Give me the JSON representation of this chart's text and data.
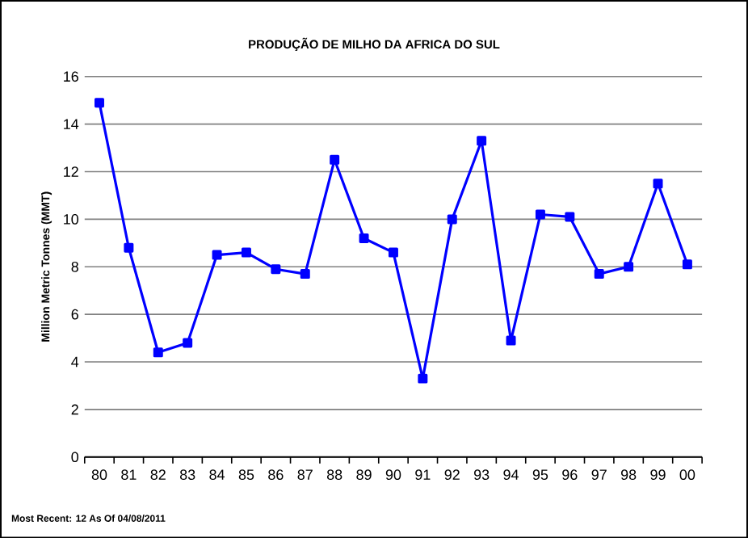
{
  "chart_data": {
    "type": "line",
    "title": "PRODUÇÃO  DE  MILHO  DA  AFRICA DO SUL",
    "ylabel": "Million Metric Tonnes (MMT)",
    "categories": [
      "80",
      "81",
      "82",
      "83",
      "84",
      "85",
      "86",
      "87",
      "88",
      "89",
      "90",
      "91",
      "92",
      "93",
      "94",
      "95",
      "96",
      "97",
      "98",
      "99",
      "00"
    ],
    "series": [
      {
        "color": "#0000ff",
        "values": [
          14.9,
          8.8,
          4.4,
          4.8,
          8.5,
          8.6,
          7.9,
          7.7,
          12.5,
          9.2,
          8.6,
          3.3,
          10.0,
          13.3,
          4.9,
          10.2,
          10.1,
          7.7,
          8.0,
          11.5,
          8.1
        ]
      }
    ],
    "ylim": [
      0,
      16
    ],
    "yticks": [
      0,
      2,
      4,
      6,
      8,
      10,
      12,
      14,
      16
    ],
    "grid": "y",
    "marker": "square",
    "line_style": "solid",
    "annotations": [
      "Most Recent: 12 As Of 04/08/2011"
    ]
  }
}
